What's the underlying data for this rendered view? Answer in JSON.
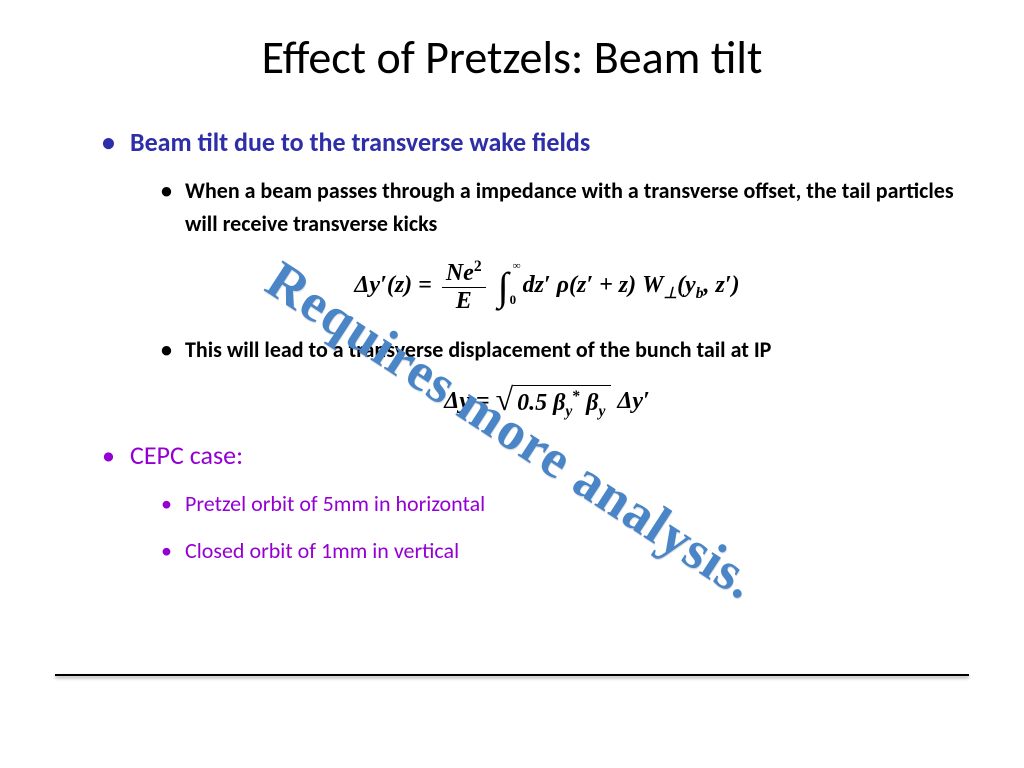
{
  "slide": {
    "title": "Effect of Pretzels: Beam tilt",
    "watermark": "Requires more analysis.",
    "colors": {
      "title": "#000000",
      "heading_blue": "#2e2ea8",
      "body_black": "#000000",
      "heading_purple": "#9400d3",
      "watermark": "#4a86c7",
      "hr": "#000000",
      "background": "#ffffff"
    },
    "typography": {
      "title_fontsize": 46,
      "lvl1_fontsize": 26,
      "lvl2_fontsize": 22,
      "equation_fontsize": 24,
      "watermark_fontsize": 54,
      "watermark_font": "Comic Sans MS / Marker Felt",
      "body_font": "Calibri",
      "equation_font": "Times New Roman"
    },
    "watermark_rotation_deg": 33,
    "bullets": {
      "main1": {
        "text": "Beam tilt due to the transverse wake fields",
        "color": "#2e2ea8",
        "sub": {
          "s1": "When a beam passes through a impedance with a transverse offset, the tail particles will receive transverse kicks",
          "eq1_latex": "\\Delta y'(z) = \\frac{Ne^{2}}{E} \\int_{0}^{\\infty} dz'\\,\\rho(z'+z)\\,W_{\\perp}(y_{b}, z')",
          "s2": "This will lead to a transverse displacement of the bunch tail at IP",
          "eq2_latex": "\\Delta y = \\sqrt{0.5\\,\\beta_{y}^{*}\\,\\beta_{y}}\\;\\Delta y'"
        }
      },
      "main2": {
        "text": "CEPC case:",
        "color": "#9400d3",
        "sub": {
          "s1": "Pretzel orbit of 5mm in horizontal",
          "s2": "Closed orbit of 1mm in vertical"
        }
      }
    }
  }
}
